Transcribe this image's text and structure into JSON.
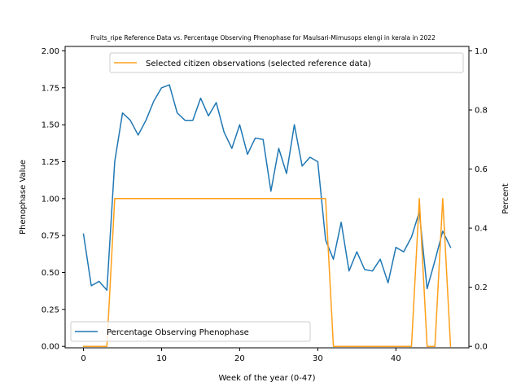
{
  "chart_data": {
    "type": "line",
    "title": "Fruits_ripe Reference Data vs. Percentage Observing Phenophase for Maulsari-Mimusops elengi in kerala in 2022",
    "xlabel": "Week of the year (0-47)",
    "ylabel_left": "Phenophase Value",
    "ylabel_right": "Percent",
    "xlim": [
      -2.35,
      49.35
    ],
    "ylim_left": [
      -0.01,
      2.03
    ],
    "ylim_right": [
      -0.005,
      1.015
    ],
    "xticks": [
      0,
      10,
      20,
      30,
      40
    ],
    "xtick_labels": [
      "0",
      "10",
      "20",
      "30",
      "40"
    ],
    "yticks_left": [
      0.0,
      0.25,
      0.5,
      0.75,
      1.0,
      1.25,
      1.5,
      1.75,
      2.0
    ],
    "ytick_labels_left": [
      "0.00",
      "0.25",
      "0.50",
      "0.75",
      "1.00",
      "1.25",
      "1.50",
      "1.75",
      "2.00"
    ],
    "yticks_right": [
      0.0,
      0.2,
      0.4,
      0.6,
      0.8,
      1.0
    ],
    "ytick_labels_right": [
      "0.0",
      "0.2",
      "0.4",
      "0.6",
      "0.8",
      "1.0"
    ],
    "series": [
      {
        "name": "Percentage Observing Phenophase",
        "axis": "left",
        "color": "#1f77b4",
        "x": [
          0,
          1,
          2,
          3,
          4,
          5,
          6,
          7,
          8,
          9,
          10,
          11,
          12,
          13,
          14,
          15,
          16,
          17,
          18,
          19,
          20,
          21,
          22,
          23,
          24,
          25,
          26,
          27,
          28,
          29,
          30,
          31,
          32,
          33,
          34,
          35,
          36,
          37,
          38,
          39,
          40,
          41,
          42,
          43,
          44,
          45,
          46,
          47
        ],
        "values": [
          0.76,
          0.41,
          0.44,
          0.38,
          1.25,
          1.58,
          1.53,
          1.43,
          1.53,
          1.66,
          1.75,
          1.77,
          1.58,
          1.53,
          1.53,
          1.68,
          1.56,
          1.65,
          1.45,
          1.34,
          1.5,
          1.3,
          1.41,
          1.4,
          1.05,
          1.34,
          1.17,
          1.5,
          1.22,
          1.28,
          1.25,
          0.72,
          0.59,
          0.84,
          0.51,
          0.64,
          0.52,
          0.51,
          0.59,
          0.43,
          0.67,
          0.64,
          0.74,
          0.91,
          0.39,
          0.58,
          0.78,
          0.67
        ]
      },
      {
        "name": "Selected citizen observations (selected reference data)",
        "axis": "right",
        "color": "#ff9f1a",
        "x": [
          0,
          1,
          2,
          3,
          4,
          5,
          6,
          7,
          8,
          9,
          10,
          11,
          12,
          13,
          14,
          15,
          16,
          17,
          18,
          19,
          20,
          21,
          22,
          23,
          24,
          25,
          26,
          27,
          28,
          29,
          30,
          31,
          32,
          33,
          34,
          35,
          36,
          37,
          38,
          39,
          40,
          41,
          42,
          43,
          44,
          45,
          46,
          47
        ],
        "values": [
          0,
          0,
          0,
          0,
          0.5,
          0.5,
          0.5,
          0.5,
          0.5,
          0.5,
          0.5,
          0.5,
          0.5,
          0.5,
          0.5,
          0.5,
          0.5,
          0.5,
          0.5,
          0.5,
          0.5,
          0.5,
          0.5,
          0.5,
          0.5,
          0.5,
          0.5,
          0.5,
          0.5,
          0.5,
          0.5,
          0.5,
          0,
          0,
          0,
          0,
          0,
          0,
          0,
          0,
          0,
          0,
          0,
          0.5,
          0,
          0,
          0.5,
          0
        ]
      }
    ],
    "legend_left_position": "lower left",
    "legend_right_position": "upper right",
    "grid": false
  }
}
